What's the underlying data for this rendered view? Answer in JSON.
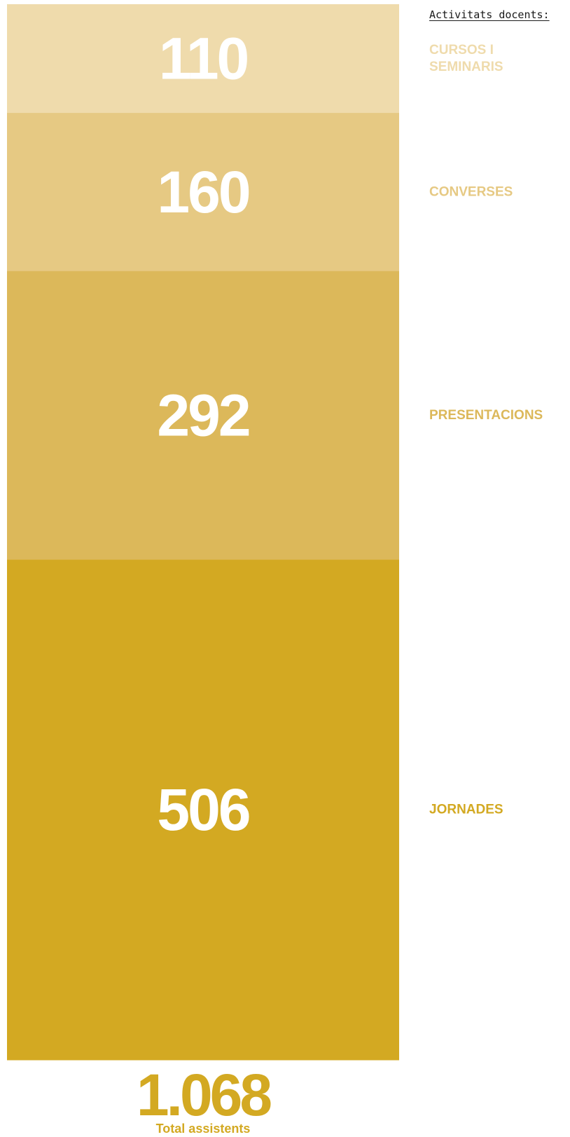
{
  "legend_title": "Activitats docents:",
  "total": {
    "value": "1.068",
    "label": "Total assistents"
  },
  "colors": {
    "total_text": "#d3a922",
    "label_text": "#ffffff"
  },
  "chart_data": {
    "type": "bar",
    "orientation": "stacked-vertical",
    "categories": [
      "CURSOS I SEMINARIS",
      "CONVERSES",
      "PRESENTACIONS",
      "JORNADES"
    ],
    "label_lines": [
      [
        "CURSOS I",
        "SEMINARIS"
      ],
      [
        "CONVERSES"
      ],
      [
        "PRESENTACIONS"
      ],
      [
        "JORNADES"
      ]
    ],
    "values": [
      110,
      160,
      292,
      506
    ],
    "colors": [
      "#efdbac",
      "#e6c983",
      "#dcb85a",
      "#d3a922"
    ],
    "title": "",
    "xlabel": "",
    "ylabel": ""
  }
}
